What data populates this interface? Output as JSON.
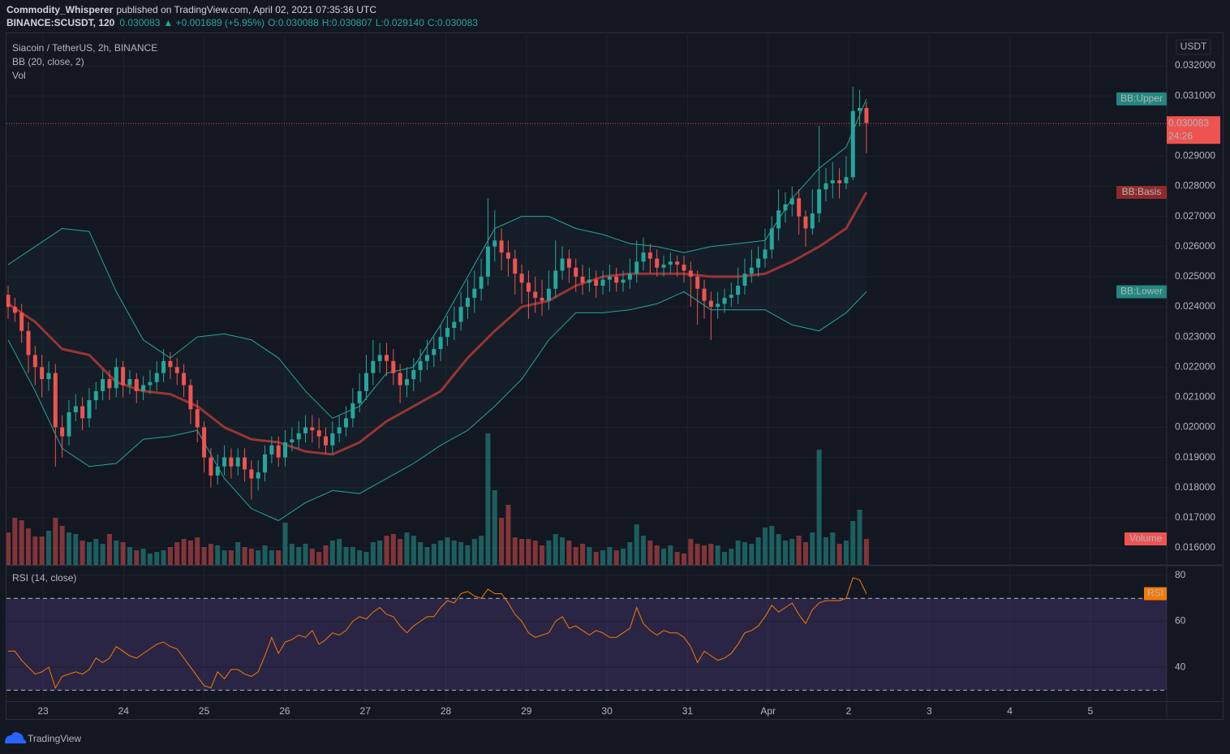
{
  "header": {
    "publisher": "Commodity_Whisperer",
    "published": "published on TradingView.com, April 02, 2021 07:35:36 UTC",
    "symbol": "BINANCE:SCUSDT, 120",
    "last": "0.030083",
    "change": "▲ +0.001689 (+5.95%)",
    "open": "O:0.030088",
    "high": "H:0.030807",
    "low": "L:0.029140",
    "close": "C:0.030083"
  },
  "chart_data": {
    "type": "candlestick",
    "title": "Siacoin / TetherUS, 2h, BINANCE",
    "indicator": "BB (20, close, 2)",
    "volume_label": "Vol",
    "y_unit": "USDT",
    "ylim": [
      0.015433,
      0.033106
    ],
    "yticks": [
      {
        "value": 0.016,
        "label": "0.016000"
      },
      {
        "value": 0.017,
        "label": "0.017000"
      },
      {
        "value": 0.018,
        "label": "0.018000"
      },
      {
        "value": 0.019,
        "label": "0.019000"
      },
      {
        "value": 0.02,
        "label": "0.020000"
      },
      {
        "value": 0.021,
        "label": "0.021000"
      },
      {
        "value": 0.022,
        "label": "0.022000"
      },
      {
        "value": 0.023,
        "label": "0.023000"
      },
      {
        "value": 0.024,
        "label": "0.024000"
      },
      {
        "value": 0.025,
        "label": "0.025000"
      },
      {
        "value": 0.026,
        "label": "0.026000"
      },
      {
        "value": 0.027,
        "label": "0.027000"
      },
      {
        "value": 0.028,
        "label": "0.028000"
      },
      {
        "value": 0.029,
        "label": "0.029000"
      },
      {
        "value": 0.03,
        "label": "0.030000"
      },
      {
        "value": 0.031,
        "label": "0.031000"
      },
      {
        "value": 0.032,
        "label": "0.032000"
      }
    ],
    "xtick_labels": [
      "23",
      "24",
      "25",
      "26",
      "27",
      "28",
      "29",
      "30",
      "31",
      "Apr",
      "2",
      "3",
      "4",
      "5"
    ],
    "grid": true,
    "up_color": "#26a69a",
    "down_color": "#ef5350",
    "candles": {
      "open": [
        0.0244,
        0.024,
        0.0238,
        0.0232,
        0.0224,
        0.022,
        0.0216,
        0.0218,
        0.02,
        0.0197,
        0.0205,
        0.0207,
        0.0203,
        0.0209,
        0.0212,
        0.0216,
        0.0213,
        0.022,
        0.0214,
        0.0216,
        0.0212,
        0.0214,
        0.0215,
        0.0218,
        0.0222,
        0.022,
        0.0218,
        0.0214,
        0.0206,
        0.02,
        0.019,
        0.0184,
        0.0187,
        0.019,
        0.0187,
        0.019,
        0.0186,
        0.0183,
        0.0185,
        0.0191,
        0.0194,
        0.019,
        0.0195,
        0.0196,
        0.0198,
        0.02,
        0.0199,
        0.0197,
        0.0194,
        0.0198,
        0.02,
        0.0203,
        0.0208,
        0.0212,
        0.0218,
        0.0222,
        0.0224,
        0.0222,
        0.0218,
        0.0214,
        0.0216,
        0.0219,
        0.0222,
        0.0224,
        0.0226,
        0.023,
        0.0233,
        0.0235,
        0.024,
        0.0243,
        0.0246,
        0.025,
        0.026,
        0.0262,
        0.0258,
        0.0256,
        0.0251,
        0.0248,
        0.0245,
        0.0243,
        0.0242,
        0.0246,
        0.0252,
        0.0256,
        0.0253,
        0.025,
        0.0248,
        0.0249,
        0.0247,
        0.0249,
        0.025,
        0.0248,
        0.0249,
        0.0251,
        0.0255,
        0.0258,
        0.0256,
        0.0253,
        0.0254,
        0.0255,
        0.0254,
        0.0252,
        0.025,
        0.0246,
        0.0242,
        0.024,
        0.0241,
        0.0243,
        0.0244,
        0.0247,
        0.0251,
        0.0253,
        0.0256,
        0.0259,
        0.0266,
        0.0272,
        0.0274,
        0.0276,
        0.027,
        0.0266,
        0.0271,
        0.0279,
        0.0281,
        0.0282,
        0.0281,
        0.0283,
        0.0305,
        0.0306
      ],
      "high": [
        0.0247,
        0.0243,
        0.0241,
        0.0235,
        0.0227,
        0.0224,
        0.0222,
        0.0221,
        0.0204,
        0.0209,
        0.0211,
        0.021,
        0.0213,
        0.0215,
        0.0219,
        0.0219,
        0.0223,
        0.0222,
        0.0219,
        0.0218,
        0.0217,
        0.0219,
        0.0222,
        0.0226,
        0.0225,
        0.0223,
        0.0221,
        0.0216,
        0.0209,
        0.0202,
        0.0193,
        0.0191,
        0.0194,
        0.0193,
        0.0193,
        0.0193,
        0.0189,
        0.0189,
        0.0194,
        0.0197,
        0.0197,
        0.0199,
        0.02,
        0.0202,
        0.0204,
        0.0204,
        0.0203,
        0.02,
        0.0202,
        0.0204,
        0.0207,
        0.0213,
        0.0218,
        0.0224,
        0.0229,
        0.0228,
        0.0228,
        0.0226,
        0.0221,
        0.022,
        0.0223,
        0.0226,
        0.0229,
        0.023,
        0.0234,
        0.0237,
        0.024,
        0.0245,
        0.0249,
        0.0252,
        0.0256,
        0.0276,
        0.0272,
        0.0266,
        0.0262,
        0.0259,
        0.0254,
        0.0252,
        0.025,
        0.0249,
        0.0252,
        0.0262,
        0.026,
        0.0259,
        0.0256,
        0.0254,
        0.0253,
        0.0252,
        0.0252,
        0.0254,
        0.0253,
        0.0252,
        0.0256,
        0.0262,
        0.0263,
        0.0261,
        0.0259,
        0.0257,
        0.0258,
        0.0257,
        0.0257,
        0.0255,
        0.0252,
        0.0249,
        0.0245,
        0.0245,
        0.0246,
        0.0248,
        0.0253,
        0.0256,
        0.0259,
        0.026,
        0.0266,
        0.027,
        0.0279,
        0.0278,
        0.028,
        0.0279,
        0.0272,
        0.0279,
        0.03,
        0.0286,
        0.0288,
        0.0286,
        0.029,
        0.0313,
        0.0312,
        0.0308
      ],
      "low": [
        0.0236,
        0.0235,
        0.0228,
        0.0218,
        0.0214,
        0.021,
        0.0212,
        0.0187,
        0.019,
        0.0194,
        0.0202,
        0.0199,
        0.02,
        0.0206,
        0.0209,
        0.0209,
        0.021,
        0.021,
        0.0211,
        0.0208,
        0.0209,
        0.0211,
        0.0212,
        0.0215,
        0.0216,
        0.0214,
        0.021,
        0.0201,
        0.0195,
        0.0185,
        0.018,
        0.0181,
        0.0184,
        0.0183,
        0.0184,
        0.0182,
        0.0176,
        0.0179,
        0.0182,
        0.0188,
        0.0187,
        0.0187,
        0.0192,
        0.0193,
        0.0195,
        0.0195,
        0.0193,
        0.0191,
        0.0191,
        0.0195,
        0.0197,
        0.02,
        0.0205,
        0.0209,
        0.0214,
        0.0218,
        0.0217,
        0.0214,
        0.0208,
        0.021,
        0.0212,
        0.0215,
        0.0219,
        0.022,
        0.0222,
        0.0227,
        0.0229,
        0.0232,
        0.0236,
        0.0238,
        0.0242,
        0.0247,
        0.0255,
        0.0252,
        0.025,
        0.0244,
        0.0241,
        0.0236,
        0.0238,
        0.0237,
        0.0239,
        0.0243,
        0.0249,
        0.0248,
        0.0245,
        0.0244,
        0.0245,
        0.0243,
        0.0244,
        0.0245,
        0.0245,
        0.0245,
        0.0246,
        0.0248,
        0.0252,
        0.0251,
        0.025,
        0.025,
        0.0251,
        0.025,
        0.0248,
        0.024,
        0.0234,
        0.0236,
        0.0229,
        0.0236,
        0.0238,
        0.024,
        0.0241,
        0.0244,
        0.0248,
        0.025,
        0.0253,
        0.0256,
        0.0262,
        0.0268,
        0.027,
        0.0264,
        0.026,
        0.0264,
        0.0268,
        0.0275,
        0.0276,
        0.0276,
        0.0279,
        0.0282,
        0.03,
        0.0291
      ],
      "close": [
        0.024,
        0.0238,
        0.0232,
        0.0224,
        0.022,
        0.0216,
        0.0218,
        0.02,
        0.0197,
        0.0205,
        0.0207,
        0.0203,
        0.0209,
        0.0212,
        0.0216,
        0.0213,
        0.022,
        0.0214,
        0.0216,
        0.0212,
        0.0214,
        0.0215,
        0.0218,
        0.0222,
        0.022,
        0.0218,
        0.0214,
        0.0206,
        0.02,
        0.019,
        0.0184,
        0.0187,
        0.019,
        0.0187,
        0.019,
        0.0186,
        0.0183,
        0.0185,
        0.0191,
        0.0194,
        0.019,
        0.0195,
        0.0196,
        0.0198,
        0.02,
        0.0199,
        0.0197,
        0.0194,
        0.0198,
        0.02,
        0.0203,
        0.0208,
        0.0212,
        0.0218,
        0.0222,
        0.0224,
        0.0222,
        0.0218,
        0.0214,
        0.0216,
        0.0219,
        0.0222,
        0.0224,
        0.0226,
        0.023,
        0.0233,
        0.0235,
        0.024,
        0.0243,
        0.0246,
        0.025,
        0.026,
        0.0262,
        0.0258,
        0.0256,
        0.0251,
        0.0248,
        0.0245,
        0.0243,
        0.0242,
        0.0246,
        0.0252,
        0.0256,
        0.0253,
        0.025,
        0.0248,
        0.0249,
        0.0247,
        0.0249,
        0.025,
        0.0248,
        0.0249,
        0.0251,
        0.0255,
        0.0258,
        0.0256,
        0.0253,
        0.0254,
        0.0255,
        0.0254,
        0.0252,
        0.025,
        0.0246,
        0.0242,
        0.024,
        0.0241,
        0.0243,
        0.0244,
        0.0247,
        0.0251,
        0.0253,
        0.0256,
        0.0259,
        0.0266,
        0.0272,
        0.0274,
        0.0276,
        0.027,
        0.0266,
        0.0271,
        0.0279,
        0.0281,
        0.0282,
        0.0281,
        0.0283,
        0.0305,
        0.0306,
        0.0301
      ]
    },
    "volume": {
      "name": "Volume",
      "color": "#ef5350",
      "values": [
        40,
        58,
        55,
        45,
        35,
        35,
        42,
        58,
        48,
        40,
        38,
        30,
        28,
        32,
        26,
        38,
        30,
        28,
        22,
        18,
        20,
        14,
        16,
        18,
        22,
        28,
        32,
        30,
        34,
        22,
        26,
        24,
        18,
        18,
        28,
        22,
        20,
        18,
        24,
        18,
        18,
        52,
        26,
        22,
        26,
        20,
        16,
        24,
        30,
        32,
        22,
        22,
        18,
        16,
        28,
        30,
        36,
        38,
        32,
        40,
        36,
        28,
        22,
        26,
        30,
        34,
        30,
        28,
        24,
        32,
        36,
        162,
        92,
        58,
        74,
        34,
        32,
        32,
        30,
        24,
        30,
        38,
        34,
        30,
        22,
        26,
        22,
        16,
        18,
        22,
        18,
        20,
        28,
        50,
        36,
        30,
        24,
        20,
        24,
        16,
        14,
        32,
        26,
        24,
        26,
        24,
        16,
        20,
        30,
        28,
        26,
        34,
        46,
        48,
        38,
        30,
        32,
        36,
        28,
        40,
        142,
        34,
        40,
        26,
        30,
        54,
        68,
        32
      ]
    },
    "bb": {
      "x": [
        0,
        4,
        8,
        12,
        16,
        20,
        24,
        28,
        32,
        36,
        40,
        44,
        48,
        52,
        56,
        60,
        64,
        68,
        72,
        76,
        80,
        84,
        88,
        92,
        96,
        100,
        104,
        108,
        112,
        116,
        120,
        124,
        127
      ],
      "series": [
        {
          "name": "BB:Upper",
          "color": "#22877e",
          "values": [
            0.0254,
            0.026,
            0.0266,
            0.0265,
            0.0245,
            0.0229,
            0.0223,
            0.023,
            0.0231,
            0.0229,
            0.0223,
            0.0212,
            0.0203,
            0.0207,
            0.0218,
            0.022,
            0.0234,
            0.025,
            0.0266,
            0.027,
            0.027,
            0.0266,
            0.0264,
            0.0261,
            0.026,
            0.0258,
            0.026,
            0.0261,
            0.0262,
            0.0276,
            0.0286,
            0.0293,
            0.0309
          ]
        },
        {
          "name": "BB:Basis",
          "color": "#8e2a2a",
          "values": [
            0.0241,
            0.0235,
            0.0226,
            0.0224,
            0.0215,
            0.0212,
            0.0211,
            0.0207,
            0.02,
            0.0196,
            0.0195,
            0.0192,
            0.0191,
            0.0195,
            0.0202,
            0.0207,
            0.0212,
            0.0223,
            0.0232,
            0.024,
            0.0242,
            0.0247,
            0.025,
            0.0251,
            0.0251,
            0.0251,
            0.025,
            0.025,
            0.0251,
            0.0255,
            0.026,
            0.0266,
            0.0278
          ]
        },
        {
          "name": "BB:Lower",
          "color": "#22877e",
          "values": [
            0.0229,
            0.0212,
            0.0193,
            0.0187,
            0.0188,
            0.0196,
            0.0197,
            0.0199,
            0.0183,
            0.0173,
            0.0169,
            0.0175,
            0.0179,
            0.0178,
            0.0183,
            0.0188,
            0.0194,
            0.0199,
            0.0207,
            0.0216,
            0.0229,
            0.0238,
            0.0238,
            0.0239,
            0.0241,
            0.0245,
            0.0239,
            0.0239,
            0.0239,
            0.0234,
            0.0232,
            0.0238,
            0.0245
          ]
        }
      ]
    },
    "last_price": {
      "value": 0.030083,
      "countdown": "24:26",
      "color": "#ef5350"
    },
    "rsi": {
      "title": "RSI (14, close)",
      "name": "RSI",
      "color": "#f57c00",
      "ylim": [
        25.2,
        84.2
      ],
      "yticks": [
        40,
        60,
        80
      ],
      "bands": [
        70,
        30
      ],
      "values": [
        47,
        47,
        43,
        40,
        37,
        38,
        40,
        31,
        36,
        37,
        38,
        37,
        39,
        44,
        42,
        44,
        49,
        47,
        45,
        44,
        46,
        48,
        50,
        51,
        49,
        48,
        44,
        40,
        36,
        32,
        31,
        38,
        35,
        39,
        39,
        37,
        36,
        38,
        45,
        53,
        46,
        51,
        52,
        54,
        53,
        56,
        50,
        52,
        55,
        54,
        56,
        60,
        62,
        61,
        64,
        66,
        63,
        62,
        58,
        55,
        58,
        60,
        62,
        62,
        66,
        69,
        68,
        72,
        73,
        71,
        70,
        74,
        72,
        72,
        68,
        63,
        60,
        55,
        53,
        54,
        55,
        60,
        62,
        57,
        58,
        56,
        54,
        56,
        55,
        53,
        53,
        55,
        57,
        66,
        59,
        56,
        54,
        56,
        55,
        55,
        53,
        49,
        42,
        47,
        45,
        43,
        44,
        46,
        50,
        55,
        56,
        58,
        62,
        67,
        64,
        66,
        68,
        63,
        59,
        65,
        68,
        69,
        69,
        69,
        70,
        79,
        78,
        72
      ]
    }
  },
  "footer": {
    "brand": "TradingView"
  }
}
